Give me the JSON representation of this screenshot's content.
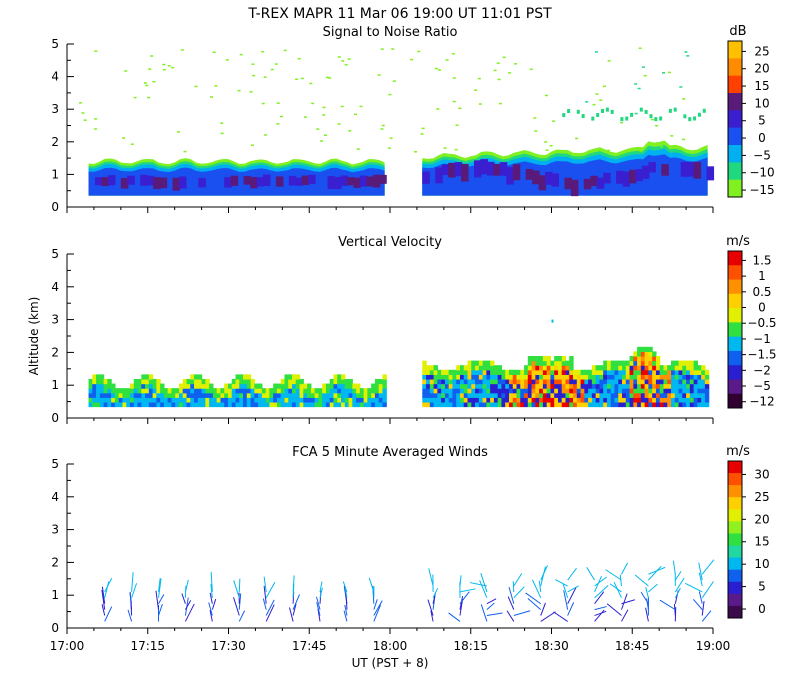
{
  "header": {
    "title": "T-REX   MAPR 11 Mar 06   19:00 UT   11:01   PST"
  },
  "colors": {
    "scale": [
      "#3a0a4a",
      "#5a1a8a",
      "#2a1fd0",
      "#1060f0",
      "#00b8f0",
      "#20d8a0",
      "#30e040",
      "#90f020",
      "#e0f000",
      "#ffd000",
      "#ff9000",
      "#ff5000",
      "#e80000"
    ]
  },
  "chart_data": [
    {
      "type": "heatmap",
      "title": "Signal to Noise Ratio",
      "unit": "dB",
      "x_ticks": [
        "17:00",
        "17:15",
        "17:30",
        "17:45",
        "18:00",
        "18:15",
        "18:30",
        "18:45",
        "19:00"
      ],
      "xlim": [
        "17:00",
        "19:00"
      ],
      "ylim": [
        0,
        5
      ],
      "y_ticks": [
        "0",
        "1",
        "2",
        "3",
        "4",
        "5"
      ],
      "colorbar": {
        "labels": [
          "25",
          "20",
          "15",
          "10",
          "5",
          "0",
          "−5",
          "−10",
          "−15"
        ],
        "colors": [
          "#ffc000",
          "#ff8c00",
          "#ff4000",
          "#5a1a7a",
          "#3a1fd0",
          "#1a50f0",
          "#00b0f0",
          "#20d880",
          "#80f020"
        ]
      },
      "segments": [
        {
          "start": "17:04",
          "end": "17:59",
          "top_km": 1.4
        },
        {
          "start": "18:06",
          "end": "18:59",
          "top_km": 1.9
        }
      ]
    },
    {
      "type": "heatmap",
      "title": "Vertical Velocity",
      "unit": "m/s",
      "ylabel": "Altitude (km)",
      "x_ticks": [
        "17:00",
        "17:15",
        "17:30",
        "17:45",
        "18:00",
        "18:15",
        "18:30",
        "18:45",
        "19:00"
      ],
      "xlim": [
        "17:00",
        "19:00"
      ],
      "ylim": [
        0,
        5
      ],
      "y_ticks": [
        "0",
        "1",
        "2",
        "3",
        "4",
        "5"
      ],
      "colorbar": {
        "labels": [
          "1.5",
          "1",
          "0.5",
          "0",
          "−0.5",
          "−1",
          "−1.5",
          "−2",
          "−5",
          "−12"
        ],
        "colors": [
          "#e80000",
          "#ff5000",
          "#ff9000",
          "#ffd000",
          "#e0f000",
          "#30e040",
          "#00b8f0",
          "#1060f0",
          "#2a1fd0",
          "#5a1a8a",
          "#300030"
        ]
      },
      "segments": [
        {
          "start": "17:04",
          "end": "17:59",
          "top_km": 1.3
        },
        {
          "start": "18:06",
          "end": "18:59",
          "top_km": 2.2
        }
      ]
    },
    {
      "type": "scatter",
      "title": "FCA 5 Minute Averaged Winds",
      "unit": "m/s",
      "xlabel": "UT  (PST + 8)",
      "x_ticks": [
        "17:00",
        "17:15",
        "17:30",
        "17:45",
        "18:00",
        "18:15",
        "18:30",
        "18:45",
        "19:00"
      ],
      "xlim": [
        "17:00",
        "19:00"
      ],
      "ylim": [
        0,
        5
      ],
      "y_ticks": [
        "0",
        "1",
        "2",
        "3",
        "4",
        "5"
      ],
      "colorbar": {
        "labels": [
          "30",
          "25",
          "20",
          "15",
          "10",
          "5",
          "0"
        ],
        "colors": [
          "#e80000",
          "#ff5000",
          "#ff9000",
          "#ffd000",
          "#e0f000",
          "#90f020",
          "#30e040",
          "#20d8a0",
          "#00b8f0",
          "#1060f0",
          "#2a1fd0",
          "#5a1a8a",
          "#3a0a4a"
        ]
      },
      "profile_times": [
        "17:07",
        "17:12",
        "17:17",
        "17:22",
        "17:27",
        "17:32",
        "17:37",
        "17:42",
        "17:47",
        "17:52",
        "17:57",
        "18:08",
        "18:13",
        "18:18",
        "18:23",
        "18:28",
        "18:33",
        "18:38",
        "18:43",
        "18:48",
        "18:53",
        "18:58"
      ]
    }
  ]
}
